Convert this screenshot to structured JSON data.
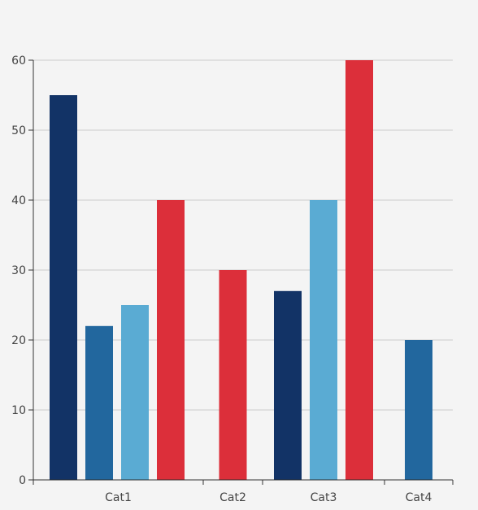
{
  "chart_data": {
    "type": "bar",
    "title": "",
    "xlabel": "",
    "ylabel": "",
    "ylim": [
      0,
      60
    ],
    "yticks": [
      0,
      10,
      20,
      30,
      40,
      50,
      60
    ],
    "grid": true,
    "categories": [
      {
        "label": "Cat1",
        "bars": [
          {
            "value": 55,
            "color": "#123366"
          },
          {
            "value": 22,
            "color": "#22679e"
          },
          {
            "value": 25,
            "color": "#5aabd3"
          },
          {
            "value": 40,
            "color": "#dc2f3a"
          }
        ]
      },
      {
        "label": "Cat2",
        "bars": [
          {
            "value": 30,
            "color": "#dc2f3a"
          }
        ]
      },
      {
        "label": "Cat3",
        "bars": [
          {
            "value": 27,
            "color": "#123366"
          },
          {
            "value": 40,
            "color": "#5aabd3"
          },
          {
            "value": 60,
            "color": "#dc2f3a"
          }
        ]
      },
      {
        "label": "Cat4",
        "bars": [
          {
            "value": 20,
            "color": "#22679e"
          }
        ]
      }
    ]
  }
}
